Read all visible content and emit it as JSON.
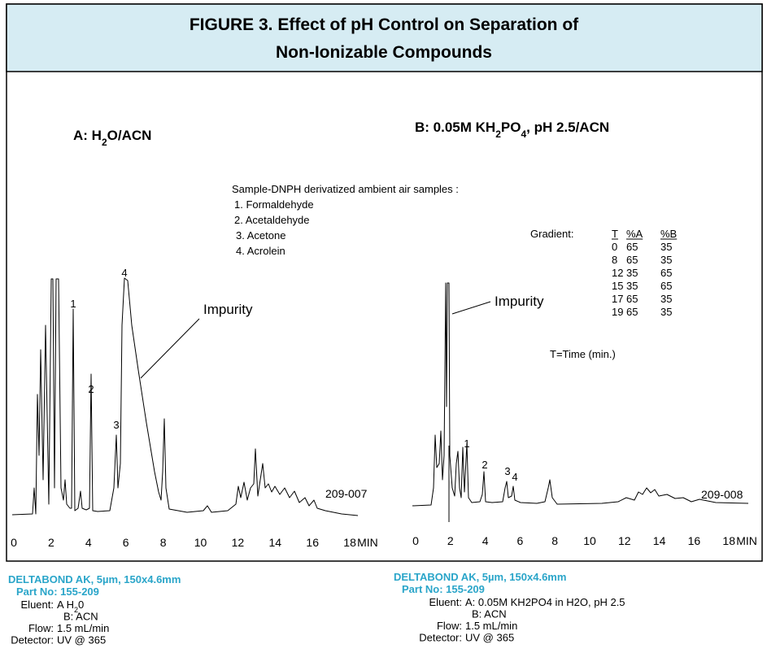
{
  "title": [
    "FIGURE 3. Effect of pH Control on Separation of",
    "Non-Ionizable Compounds"
  ],
  "panels": [
    {
      "label": [
        "A: H",
        "2",
        "O/ACN"
      ],
      "peaks": [
        "1",
        "2",
        "3",
        "4"
      ],
      "impurity": "Impurity",
      "code": "209-007",
      "xticks": [
        0,
        2,
        4,
        6,
        8,
        10,
        12,
        14,
        16,
        18
      ],
      "unit": "MIN"
    },
    {
      "label": [
        "B: 0.05M KH",
        "2",
        "PO",
        "4",
        ", pH 2.5/ACN"
      ],
      "peaks": [
        "1",
        "2",
        "3",
        "4"
      ],
      "impurity": "Impurity",
      "code": "209-008",
      "xticks": [
        0,
        2,
        4,
        6,
        8,
        10,
        12,
        14,
        16,
        18
      ],
      "unit": "MIN"
    }
  ],
  "sample": {
    "title": "Sample-DNPH derivatized ambient air samples :",
    "items": [
      "1. Formaldehyde",
      "2. Acetaldehyde",
      "3. Acetone",
      "4. Acrolein"
    ]
  },
  "gradient": {
    "label": "Gradient:",
    "header": [
      "T",
      "%A",
      "%B"
    ],
    "rows": [
      [
        0,
        65,
        35
      ],
      [
        8,
        65,
        35
      ],
      [
        12,
        35,
        65
      ],
      [
        15,
        35,
        65
      ],
      [
        17,
        65,
        35
      ],
      [
        19,
        65,
        35
      ]
    ],
    "note": "T=Time (min.)"
  },
  "footers": [
    {
      "column": "DELTABOND  AK, 5µm, 150x4.6mm",
      "part": "Part No:  155-209",
      "rows": [
        [
          "Eluent:",
          [
            "A H",
            "2",
            "0"
          ]
        ],
        [
          "",
          [
            "B: ACN"
          ]
        ],
        [
          "Flow:",
          [
            "1.5 mL/min"
          ]
        ],
        [
          "Detector:",
          [
            "UV @ 365"
          ]
        ]
      ]
    },
    {
      "column": "DELTABOND AK, 5µm, 150x4.6mm",
      "part": "Part No:  155-209",
      "rows": [
        [
          "Eluent:",
          [
            "A: 0.05M KH2PO4 in H2O, pH 2.5"
          ]
        ],
        [
          "",
          [
            "B: ACN"
          ]
        ],
        [
          "Flow:",
          [
            "1.5 mL/min"
          ]
        ],
        [
          "Detector:",
          [
            "UV @ 365"
          ]
        ]
      ]
    }
  ]
}
